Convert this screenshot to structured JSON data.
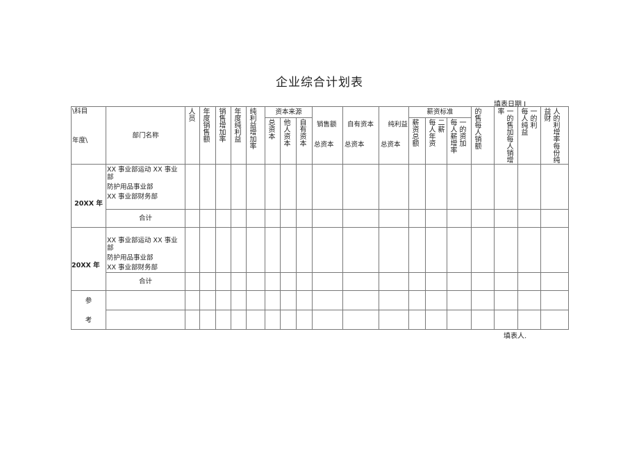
{
  "title": "企业综合计划表",
  "fill_date_label": "填表日期 I",
  "filler_label": "填表人.",
  "header": {
    "corner_top": "\\科目",
    "corner_bottom": "年度\\",
    "dept_name": "部门名称",
    "group_capital": "资本来源",
    "group_salary": "薪资标准",
    "columns": [
      [
        "人员"
      ],
      [
        "年度销售额"
      ],
      [
        "销售增加率"
      ],
      [
        "年度纯利益"
      ],
      [
        "纯利益增加率"
      ],
      [
        "总资本"
      ],
      [
        "他人资本"
      ],
      [
        "自有资本"
      ],
      [
        "销售额",
        "总资本"
      ],
      [
        "自有资本",
        "总资本"
      ],
      [
        "纯利益",
        "总资本"
      ],
      [
        "薪资总额"
      ],
      [
        "每人年资",
        "二薪"
      ],
      [
        "每人薪增率",
        "一的资加"
      ],
      [
        "的售每人销额"
      ],
      [
        "率",
        "一的售加每人销增"
      ],
      [
        "每人纯益",
        "一的利"
      ],
      [
        "益财",
        "人的利增率每份纯"
      ]
    ]
  },
  "rows": [
    {
      "year": "20XX 年",
      "depts": [
        "XX 事业部运动 XX 事业部",
        "防护用品事业部",
        "XX 事业部财务部"
      ],
      "total": "合计"
    },
    {
      "year": "20XX 年",
      "depts": [
        "XX 事业部运动 XX 事业部",
        "防护用品事业部",
        "XX 事业部财务部"
      ],
      "total": "合计"
    }
  ],
  "reference": [
    "参",
    "考"
  ]
}
